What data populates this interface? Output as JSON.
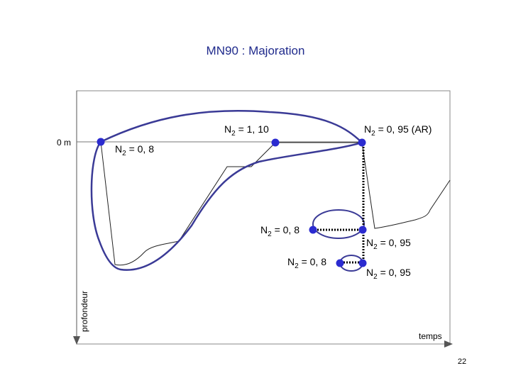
{
  "slide": {
    "title": "MN90 : Majoration",
    "page_number": "22"
  },
  "diagram": {
    "axis": {
      "depth_zero": "0 m",
      "y_label": "profondeur",
      "x_label": "temps"
    },
    "labels": [
      {
        "base": "N",
        "sub": "2",
        "rest": " = 0, 8"
      },
      {
        "base": "N",
        "sub": "2",
        "rest": " = 1, 10"
      },
      {
        "base": "N",
        "sub": "2",
        "rest": " = 0, 95 (AR)"
      },
      {
        "base": "N",
        "sub": "2",
        "rest": " = 0, 8"
      },
      {
        "base": "N",
        "sub": "2",
        "rest": " = 0, 95"
      },
      {
        "base": "N",
        "sub": "2",
        "rest": " = 0, 8"
      },
      {
        "base": "N",
        "sub": "2",
        "rest": " = 0, 95"
      }
    ],
    "colors": {
      "curve": "#3a3a96",
      "dot": "#2b2bd0",
      "frame": "#888888",
      "profile": "#222222"
    }
  }
}
